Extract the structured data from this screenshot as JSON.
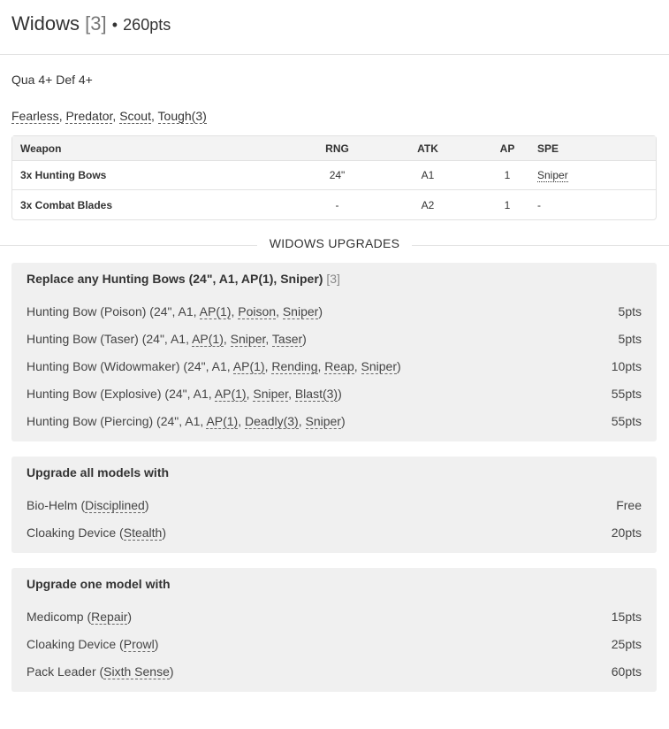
{
  "unit": {
    "name": "Widows",
    "size": "[3]",
    "points": "260pts",
    "stats": "Qua 4+ Def 4+",
    "special_rules": [
      "Fearless",
      "Predator",
      "Scout",
      "Tough(3)"
    ]
  },
  "weapons": {
    "headers": [
      "Weapon",
      "RNG",
      "ATK",
      "AP",
      "SPE"
    ],
    "rows": [
      {
        "name": "3x Hunting Bows",
        "rng": "24\"",
        "atk": "A1",
        "ap": "1",
        "spe": [
          "Sniper"
        ]
      },
      {
        "name": "3x Combat Blades",
        "rng": "-",
        "atk": "A2",
        "ap": "1",
        "spe_text": "-"
      }
    ]
  },
  "upgrades_title": "WIDOWS UPGRADES",
  "groups": [
    {
      "title": "Replace any Hunting Bows (24\", A1, AP(1), Sniper)",
      "count": "[3]",
      "options": [
        {
          "name": "Hunting Bow (Poison)",
          "params": "24\", A1",
          "rules": [
            "AP(1)",
            "Poison",
            "Sniper"
          ],
          "cost": "5pts"
        },
        {
          "name": "Hunting Bow (Taser)",
          "params": "24\", A1",
          "rules": [
            "AP(1)",
            "Sniper",
            "Taser"
          ],
          "cost": "5pts"
        },
        {
          "name": "Hunting Bow (Widowmaker)",
          "params": "24\", A1",
          "rules": [
            "AP(1)",
            "Rending",
            "Reap",
            "Sniper"
          ],
          "cost": "10pts"
        },
        {
          "name": "Hunting Bow (Explosive)",
          "params": "24\", A1",
          "rules": [
            "AP(1)",
            "Sniper",
            "Blast(3)"
          ],
          "cost": "55pts"
        },
        {
          "name": "Hunting Bow (Piercing)",
          "params": "24\", A1",
          "rules": [
            "AP(1)",
            "Deadly(3)",
            "Sniper"
          ],
          "cost": "55pts"
        }
      ]
    },
    {
      "title": "Upgrade all models with",
      "options": [
        {
          "name": "Bio-Helm",
          "rules": [
            "Disciplined"
          ],
          "cost": "Free"
        },
        {
          "name": "Cloaking Device",
          "rules": [
            "Stealth"
          ],
          "cost": "20pts"
        }
      ]
    },
    {
      "title": "Upgrade one model with",
      "options": [
        {
          "name": "Medicomp",
          "rules": [
            "Repair"
          ],
          "cost": "15pts"
        },
        {
          "name": "Cloaking Device",
          "rules": [
            "Prowl"
          ],
          "cost": "25pts"
        },
        {
          "name": "Pack Leader",
          "rules": [
            "Sixth Sense"
          ],
          "cost": "60pts"
        }
      ]
    }
  ]
}
